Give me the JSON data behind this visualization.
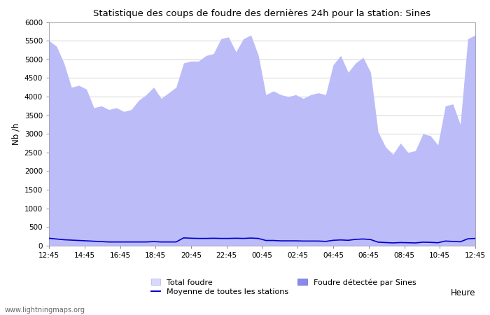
{
  "title": "Statistique des coups de foudre des dernières 24h pour la station: Sines",
  "xlabel": "Heure",
  "ylabel": "Nb /h",
  "ylim": [
    0,
    6000
  ],
  "yticks": [
    0,
    500,
    1000,
    1500,
    2000,
    2500,
    3000,
    3500,
    4000,
    4500,
    5000,
    5500,
    6000
  ],
  "xtick_labels": [
    "12:45",
    "14:45",
    "16:45",
    "18:45",
    "20:45",
    "22:45",
    "00:45",
    "02:45",
    "04:45",
    "06:45",
    "08:45",
    "10:45",
    "12:45"
  ],
  "watermark": "www.lightningmaps.org",
  "total_foudre_color": "#d8d8ff",
  "total_foudre_edge": "#b0b0e0",
  "sines_color": "#8888ee",
  "sines_edge": "#6666cc",
  "moyenne_color": "#0000cc",
  "background_color": "#ffffff",
  "grid_color": "#cccccc",
  "total_foudre": [
    5500,
    5350,
    4900,
    4250,
    4300,
    4200,
    3700,
    3750,
    3650,
    3700,
    3600,
    3650,
    3900,
    4050,
    4250,
    3950,
    4100,
    4250,
    4900,
    4950,
    4950,
    5100,
    5150,
    5550,
    5600,
    5200,
    5550,
    5650,
    5100,
    4050,
    4150,
    4050,
    4000,
    4050,
    3950,
    4050,
    4100,
    4050,
    4850,
    5100,
    4650,
    4900,
    5050,
    4650,
    3050,
    2650,
    2450,
    2750,
    2500,
    2550,
    3000,
    2950,
    2700,
    3750,
    3800,
    3250,
    5550,
    5650
  ],
  "sines_detected": [
    5500,
    5350,
    4900,
    4250,
    4300,
    4200,
    3700,
    3750,
    3650,
    3700,
    3600,
    3650,
    3900,
    4050,
    4250,
    3950,
    4100,
    4250,
    4900,
    4950,
    4950,
    5100,
    5150,
    5550,
    5600,
    5200,
    5550,
    5650,
    5100,
    4050,
    4150,
    4050,
    4000,
    4050,
    3950,
    4050,
    4100,
    4050,
    4850,
    5100,
    4650,
    4900,
    5050,
    4650,
    3050,
    2650,
    2450,
    2750,
    2500,
    2550,
    3000,
    2950,
    2700,
    3750,
    3800,
    3250,
    5550,
    5650
  ],
  "moyenne": [
    200,
    180,
    160,
    150,
    140,
    130,
    120,
    110,
    100,
    100,
    100,
    100,
    100,
    100,
    110,
    100,
    100,
    100,
    210,
    200,
    195,
    195,
    200,
    195,
    195,
    200,
    195,
    205,
    195,
    140,
    140,
    130,
    130,
    130,
    125,
    125,
    125,
    115,
    145,
    155,
    145,
    170,
    180,
    165,
    95,
    85,
    75,
    85,
    80,
    75,
    95,
    90,
    80,
    125,
    115,
    105,
    185,
    195
  ]
}
